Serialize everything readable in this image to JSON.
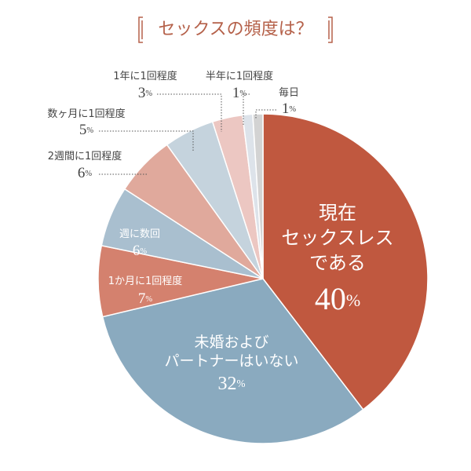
{
  "chart_data": {
    "type": "pie",
    "title": "セックスの頻度は？",
    "categories": [
      "現在\nセックスレス\nである",
      "未婚および\nパートナーはいない",
      "1か月に1回程度",
      "週に数回",
      "2週間に1回程度",
      "数ヶ月に1回程度",
      "1年に1回程度",
      "半年に1回程度",
      "毎日"
    ],
    "values": [
      40,
      32,
      7,
      6,
      6,
      5,
      3,
      1,
      1
    ],
    "value_labels": [
      "40%",
      "32%",
      "7%",
      "6%",
      "6%",
      "5%",
      "3%",
      "1%",
      "1%"
    ],
    "colors": [
      "#c0583f",
      "#8aaabf",
      "#d4816e",
      "#a9bfcf",
      "#e0a99c",
      "#c5d3dd",
      "#ecc7c2",
      "#dde3ea",
      "#d3d3d3"
    ]
  }
}
